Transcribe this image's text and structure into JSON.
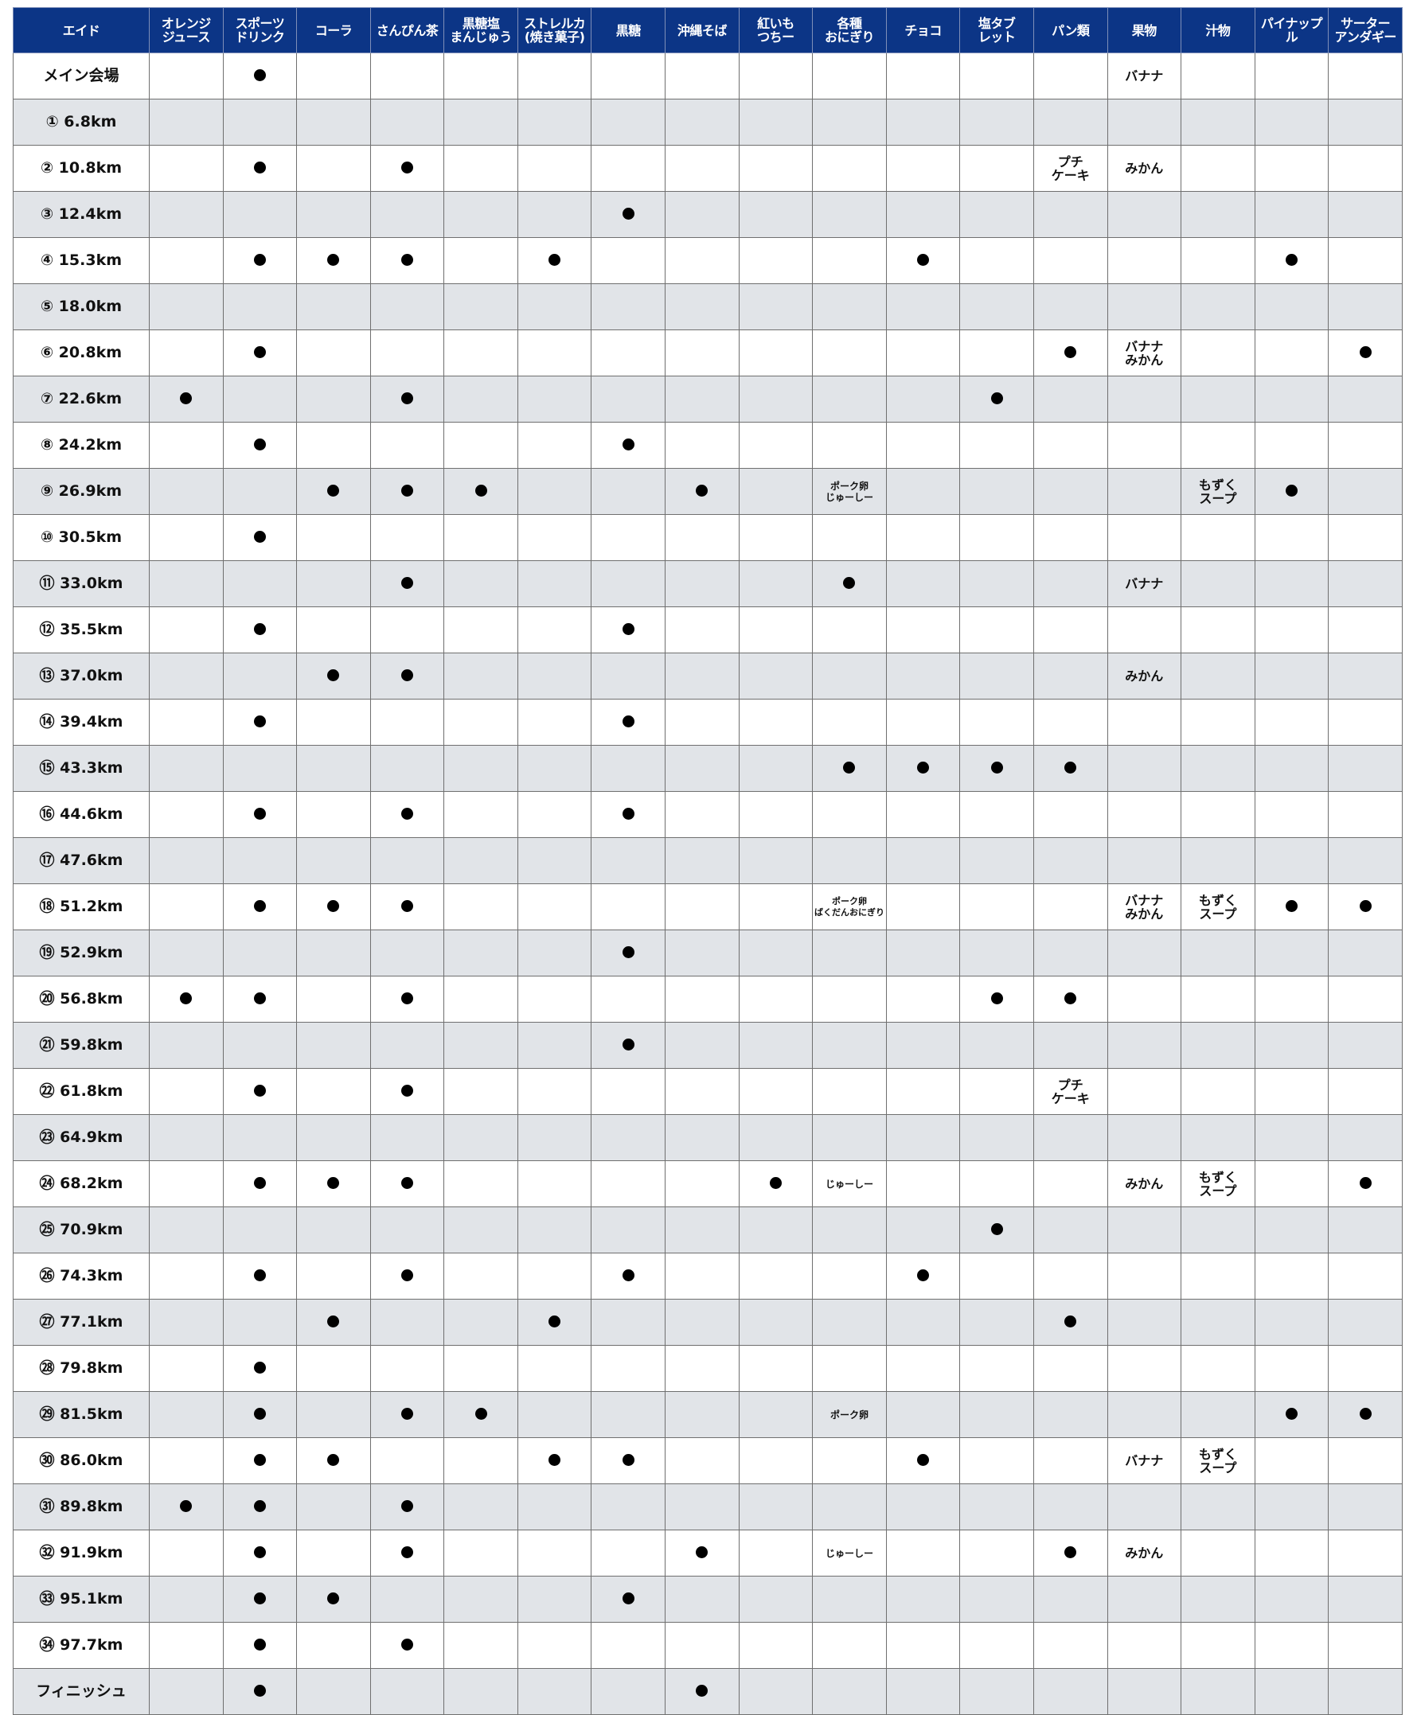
{
  "header": {
    "first": "エイド",
    "columns": [
      "オレンジ\nジュース",
      "スポーツ\nドリンク",
      "コーラ",
      "さんぴん茶",
      "黒糖塩\nまんじゅう",
      "ストレルカ\n(焼き菓子)",
      "黒糖",
      "沖縄そば",
      "紅いも\nつちー",
      "各種\nおにぎり",
      "チョコ",
      "塩タブ\nレット",
      "パン類",
      "果物",
      "汁物",
      "パイナップル",
      "サーター\nアンダギー"
    ]
  },
  "colors": {
    "header_bg": "#0c3586",
    "stripe": "#e1e4e8"
  },
  "rows": [
    {
      "label": "メイン会場",
      "cells": {
        "1": "●",
        "13": "バナナ"
      }
    },
    {
      "label": "① 6.8km",
      "cells": {}
    },
    {
      "label": "② 10.8km",
      "cells": {
        "1": "●",
        "3": "●",
        "12": "プチ\nケーキ",
        "13": "みかん"
      }
    },
    {
      "label": "③ 12.4km",
      "cells": {
        "6": "●"
      }
    },
    {
      "label": "④ 15.3km",
      "cells": {
        "1": "●",
        "2": "●",
        "3": "●",
        "5": "●",
        "10": "●",
        "15": "●"
      }
    },
    {
      "label": "⑤ 18.0km",
      "cells": {}
    },
    {
      "label": "⑥ 20.8km",
      "cells": {
        "1": "●",
        "12": "●",
        "13": "バナナ\nみかん",
        "16": "●"
      }
    },
    {
      "label": "⑦ 22.6km",
      "cells": {
        "0": "●",
        "3": "●",
        "11": "●"
      }
    },
    {
      "label": "⑧ 24.2km",
      "cells": {
        "1": "●",
        "6": "●"
      }
    },
    {
      "label": "⑨ 26.9km",
      "cells": {
        "2": "●",
        "3": "●",
        "4": "●",
        "7": "●",
        "9": "ポーク卵\nじゅーしー",
        "14": "もずく\nスープ",
        "15": "●"
      }
    },
    {
      "label": "⑩ 30.5km",
      "cells": {
        "1": "●"
      }
    },
    {
      "label": "⑪ 33.0km",
      "cells": {
        "3": "●",
        "9": "●",
        "13": "バナナ"
      }
    },
    {
      "label": "⑫ 35.5km",
      "cells": {
        "1": "●",
        "6": "●"
      }
    },
    {
      "label": "⑬ 37.0km",
      "cells": {
        "2": "●",
        "3": "●",
        "13": "みかん"
      }
    },
    {
      "label": "⑭ 39.4km",
      "cells": {
        "1": "●",
        "6": "●"
      }
    },
    {
      "label": "⑮ 43.3km",
      "cells": {
        "9": "●",
        "10": "●",
        "11": "●",
        "12": "●"
      }
    },
    {
      "label": "⑯ 44.6km",
      "cells": {
        "1": "●",
        "3": "●",
        "6": "●"
      }
    },
    {
      "label": "⑰ 47.6km",
      "cells": {}
    },
    {
      "label": "⑱ 51.2km",
      "cells": {
        "1": "●",
        "2": "●",
        "3": "●",
        "9": "ポーク卵\nばくだんおにぎり",
        "13": "バナナ\nみかん",
        "14": "もずく\nスープ",
        "15": "●",
        "16": "●"
      }
    },
    {
      "label": "⑲ 52.9km",
      "cells": {
        "6": "●"
      }
    },
    {
      "label": "⑳ 56.8km",
      "cells": {
        "0": "●",
        "1": "●",
        "3": "●",
        "11": "●",
        "12": "●"
      }
    },
    {
      "label": "㉑ 59.8km",
      "cells": {
        "6": "●"
      }
    },
    {
      "label": "㉒ 61.8km",
      "cells": {
        "1": "●",
        "3": "●",
        "12": "プチ\nケーキ"
      }
    },
    {
      "label": "㉓ 64.9km",
      "cells": {}
    },
    {
      "label": "㉔ 68.2km",
      "cells": {
        "1": "●",
        "2": "●",
        "3": "●",
        "8": "●",
        "9": "じゅーしー",
        "13": "みかん",
        "14": "もずく\nスープ",
        "16": "●"
      }
    },
    {
      "label": "㉕ 70.9km",
      "cells": {
        "11": "●"
      }
    },
    {
      "label": "㉖ 74.3km",
      "cells": {
        "1": "●",
        "3": "●",
        "6": "●",
        "10": "●"
      }
    },
    {
      "label": "㉗ 77.1km",
      "cells": {
        "2": "●",
        "5": "●",
        "12": "●"
      }
    },
    {
      "label": "㉘ 79.8km",
      "cells": {
        "1": "●"
      }
    },
    {
      "label": "㉙ 81.5km",
      "cells": {
        "1": "●",
        "3": "●",
        "4": "●",
        "9": "ポーク卵",
        "15": "●",
        "16": "●"
      }
    },
    {
      "label": "㉚ 86.0km",
      "cells": {
        "1": "●",
        "2": "●",
        "5": "●",
        "6": "●",
        "10": "●",
        "13": "バナナ",
        "14": "もずく\nスープ"
      }
    },
    {
      "label": "㉛ 89.8km",
      "cells": {
        "0": "●",
        "1": "●",
        "3": "●"
      }
    },
    {
      "label": "㉜ 91.9km",
      "cells": {
        "1": "●",
        "3": "●",
        "7": "●",
        "9": "じゅーしー",
        "12": "●",
        "13": "みかん"
      }
    },
    {
      "label": "㉝ 95.1km",
      "cells": {
        "1": "●",
        "2": "●",
        "6": "●"
      }
    },
    {
      "label": "㉞ 97.7km",
      "cells": {
        "1": "●",
        "3": "●"
      }
    },
    {
      "label": "フィニッシュ",
      "cells": {
        "1": "●",
        "7": "●"
      }
    }
  ]
}
